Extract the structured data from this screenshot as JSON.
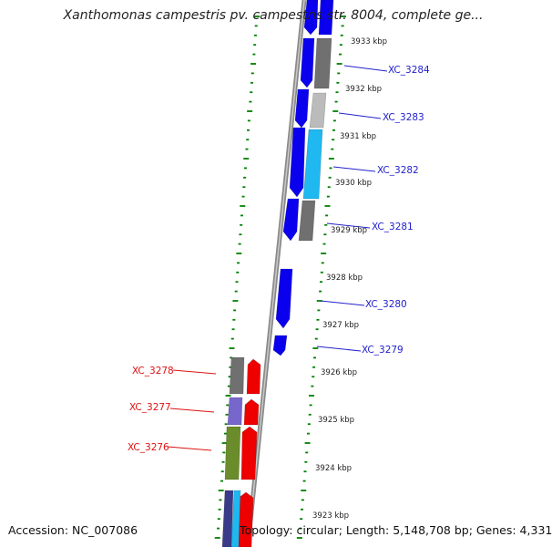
{
  "title": "Xanthomonas campestris pv. campestris str. 8004, complete ge...",
  "accession": "Accession: NC_007086",
  "topology": "Topology: circular; Length: 5,148,708 bp; Genes: 4,331",
  "colors": {
    "plus_strand": "#0a00ee",
    "minus_strand": "#ee0000",
    "plus_label": "#2222cc",
    "minus_label": "#dd1111",
    "ticks": "#008000",
    "backbone": "#808080",
    "gene_gray": "#707070",
    "gene_light_gray": "#bbbbbb",
    "gene_cyan": "#1fb8f0",
    "gene_purple": "#7766cc",
    "gene_olive": "#6b8c2a",
    "gene_navy": "#3a3a8a"
  },
  "scale_labels": [
    "3933 kbp",
    "3932 kbp",
    "3931 kbp",
    "3930 kbp",
    "3929 kbp",
    "3928 kbp",
    "3927 kbp",
    "3926 kbp",
    "3925 kbp",
    "3924 kbp",
    "3923 kbp"
  ],
  "genes_plus": [
    "XC_3284",
    "XC_3283",
    "XC_3282",
    "XC_3281",
    "XC_3280",
    "XC_3279"
  ],
  "genes_minus": [
    "XC_3278",
    "XC_3277",
    "XC_3276"
  ]
}
